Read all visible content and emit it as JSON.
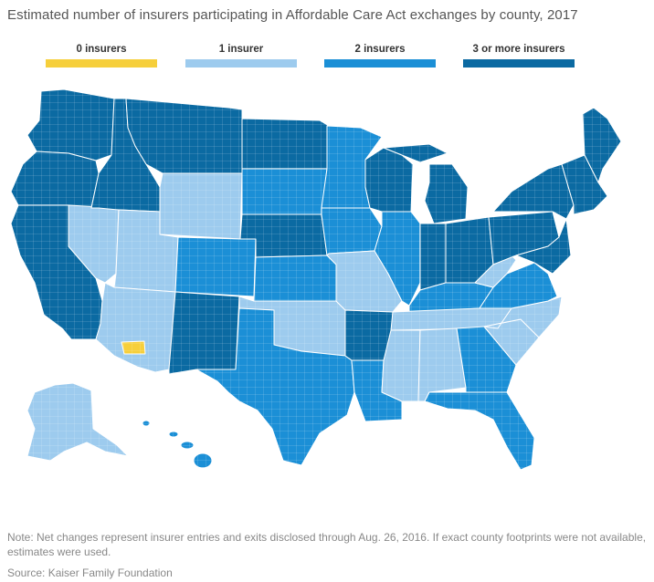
{
  "title": "Estimated number of insurers participating in Affordable Care Act exchanges by county, 2017",
  "legend": [
    {
      "label": "0 insurers",
      "color": "#f6cf3b"
    },
    {
      "label": "1 insurer",
      "color": "#9dcbee"
    },
    {
      "label": "2 insurers",
      "color": "#1b8fd6"
    },
    {
      "label": "3 or more insurers",
      "color": "#0b6aa2"
    }
  ],
  "map": {
    "name": "United States counties",
    "boundary_color": "#ffffff",
    "state_regions": [
      {
        "name": "Washington",
        "category": 3
      },
      {
        "name": "Oregon",
        "category": 3
      },
      {
        "name": "California",
        "category": 3
      },
      {
        "name": "Nevada",
        "category": 1
      },
      {
        "name": "Idaho",
        "category": 3
      },
      {
        "name": "Montana",
        "category": 3
      },
      {
        "name": "Wyoming",
        "category": 1
      },
      {
        "name": "Utah",
        "category": 1
      },
      {
        "name": "Arizona",
        "category": 1
      },
      {
        "name": "Colorado",
        "category": 2
      },
      {
        "name": "New Mexico",
        "category": 3
      },
      {
        "name": "North Dakota",
        "category": 3
      },
      {
        "name": "South Dakota",
        "category": 2
      },
      {
        "name": "Nebraska",
        "category": 3
      },
      {
        "name": "Kansas",
        "category": 2
      },
      {
        "name": "Oklahoma",
        "category": 1
      },
      {
        "name": "Texas",
        "category": 2
      },
      {
        "name": "Minnesota",
        "category": 2
      },
      {
        "name": "Iowa",
        "category": 2
      },
      {
        "name": "Missouri",
        "category": 1
      },
      {
        "name": "Arkansas",
        "category": 3
      },
      {
        "name": "Louisiana",
        "category": 2
      },
      {
        "name": "Wisconsin",
        "category": 3
      },
      {
        "name": "Illinois",
        "category": 2
      },
      {
        "name": "Michigan",
        "category": 3
      },
      {
        "name": "Indiana",
        "category": 3
      },
      {
        "name": "Ohio",
        "category": 3
      },
      {
        "name": "Kentucky",
        "category": 2
      },
      {
        "name": "Tennessee",
        "category": 1
      },
      {
        "name": "Mississippi",
        "category": 1
      },
      {
        "name": "Alabama",
        "category": 1
      },
      {
        "name": "Georgia",
        "category": 2
      },
      {
        "name": "Florida",
        "category": 2
      },
      {
        "name": "South Carolina",
        "category": 1
      },
      {
        "name": "North Carolina",
        "category": 1
      },
      {
        "name": "Virginia",
        "category": 2
      },
      {
        "name": "West Virginia",
        "category": 1
      },
      {
        "name": "Pennsylvania",
        "category": 3
      },
      {
        "name": "New York",
        "category": 3
      },
      {
        "name": "Maine",
        "category": 3
      },
      {
        "name": "New England",
        "category": 3
      },
      {
        "name": "Alaska",
        "category": 1
      },
      {
        "name": "Hawaii",
        "category": 2
      },
      {
        "name": "Pinal County, Arizona",
        "category": 0
      }
    ]
  },
  "note": "Note: Net changes represent insurer entries and exits disclosed through Aug. 26, 2016. If exact county footprints were not available, estimates were used.",
  "source": "Source: Kaiser Family Foundation"
}
